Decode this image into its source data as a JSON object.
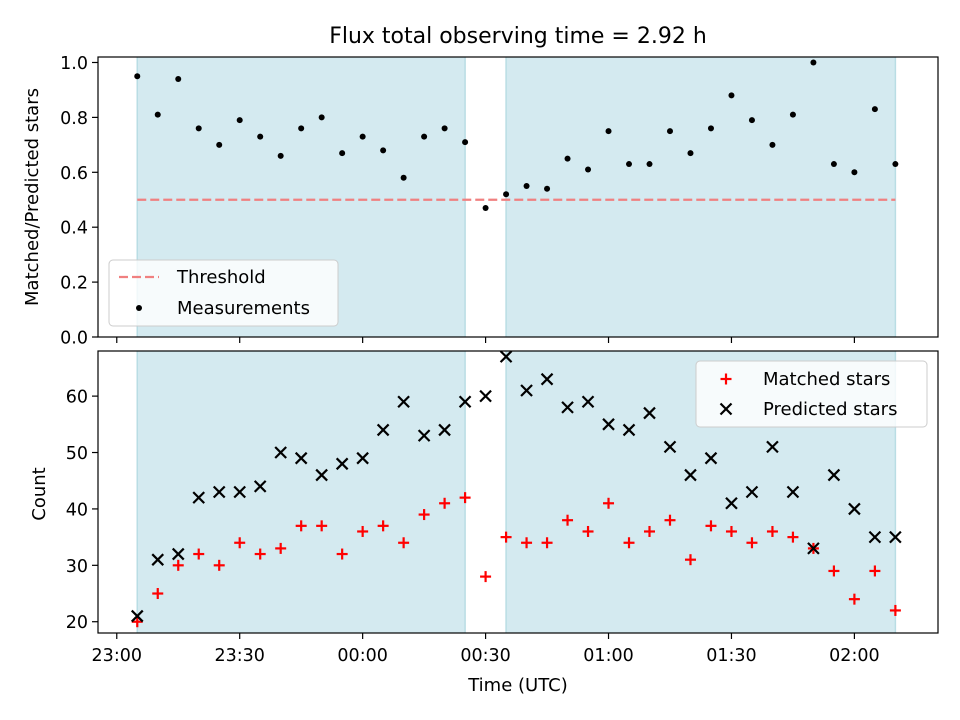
{
  "chart_data": [
    {
      "type": "scatter",
      "title": "Flux total observing time = 2.92 h",
      "xlabel": "",
      "ylabel": "Matched/Predicted stars",
      "ylim": [
        0,
        1.02
      ],
      "yticks": [
        "0.0",
        "0.2",
        "0.4",
        "0.6",
        "0.8",
        "1.0"
      ],
      "grid": false,
      "legend_position": "lower-left",
      "shaded_intervals": [
        [
          "23:05",
          "00:25"
        ],
        [
          "00:35",
          "02:10"
        ]
      ],
      "threshold": {
        "name": "Threshold",
        "value": 0.5,
        "x_range": [
          "23:05",
          "02:10"
        ],
        "color": "#f08080"
      },
      "series": [
        {
          "name": "Measurements",
          "color": "#000000",
          "x": [
            "23:05",
            "23:10",
            "23:15",
            "23:20",
            "23:25",
            "23:30",
            "23:35",
            "23:40",
            "23:45",
            "23:50",
            "23:55",
            "00:00",
            "00:05",
            "00:10",
            "00:15",
            "00:20",
            "00:25",
            "00:30",
            "00:35",
            "00:40",
            "00:45",
            "00:50",
            "00:55",
            "01:00",
            "01:05",
            "01:10",
            "01:15",
            "01:20",
            "01:25",
            "01:30",
            "01:35",
            "01:40",
            "01:45",
            "01:50",
            "01:55",
            "02:00",
            "02:05",
            "02:10"
          ],
          "values": [
            0.95,
            0.81,
            0.94,
            0.76,
            0.7,
            0.79,
            0.73,
            0.66,
            0.76,
            0.8,
            0.67,
            0.73,
            0.68,
            0.58,
            0.73,
            0.76,
            0.71,
            0.47,
            0.52,
            0.55,
            0.54,
            0.65,
            0.61,
            0.75,
            0.63,
            0.63,
            0.75,
            0.67,
            0.76,
            0.88,
            0.79,
            0.7,
            0.81,
            1.0,
            0.63,
            0.6,
            0.83,
            0.63
          ]
        }
      ]
    },
    {
      "type": "scatter",
      "title": "",
      "xlabel": "Time (UTC)",
      "ylabel": "Count",
      "ylim": [
        18,
        68
      ],
      "yticks": [
        "20",
        "30",
        "40",
        "50",
        "60"
      ],
      "xticks": [
        "23:00",
        "23:30",
        "00:00",
        "00:30",
        "01:00",
        "01:30",
        "02:00"
      ],
      "grid": false,
      "legend_position": "top-right",
      "shaded_intervals": [
        [
          "23:05",
          "00:25"
        ],
        [
          "00:35",
          "02:10"
        ]
      ],
      "series": [
        {
          "name": "Matched stars",
          "marker": "plus",
          "color": "#ff0000",
          "x": [
            "23:05",
            "23:10",
            "23:15",
            "23:20",
            "23:25",
            "23:30",
            "23:35",
            "23:40",
            "23:45",
            "23:50",
            "23:55",
            "00:00",
            "00:05",
            "00:10",
            "00:15",
            "00:20",
            "00:25",
            "00:30",
            "00:35",
            "00:40",
            "00:45",
            "00:50",
            "00:55",
            "01:00",
            "01:05",
            "01:10",
            "01:15",
            "01:20",
            "01:25",
            "01:30",
            "01:35",
            "01:40",
            "01:45",
            "01:50",
            "01:55",
            "02:00",
            "02:05",
            "02:10"
          ],
          "values": [
            20,
            25,
            30,
            32,
            30,
            34,
            32,
            33,
            37,
            37,
            32,
            36,
            37,
            34,
            39,
            41,
            42,
            28,
            35,
            34,
            34,
            38,
            36,
            41,
            34,
            36,
            38,
            31,
            37,
            36,
            34,
            36,
            35,
            33,
            29,
            24,
            29,
            22
          ]
        },
        {
          "name": "Predicted stars",
          "marker": "x",
          "color": "#000000",
          "x": [
            "23:05",
            "23:10",
            "23:15",
            "23:20",
            "23:25",
            "23:30",
            "23:35",
            "23:40",
            "23:45",
            "23:50",
            "23:55",
            "00:00",
            "00:05",
            "00:10",
            "00:15",
            "00:20",
            "00:25",
            "00:30",
            "00:35",
            "00:40",
            "00:45",
            "00:50",
            "00:55",
            "01:00",
            "01:05",
            "01:10",
            "01:15",
            "01:20",
            "01:25",
            "01:30",
            "01:35",
            "01:40",
            "01:45",
            "01:50",
            "01:55",
            "02:00",
            "02:05",
            "02:10"
          ],
          "values": [
            21,
            31,
            32,
            42,
            43,
            43,
            44,
            50,
            49,
            46,
            48,
            49,
            54,
            59,
            53,
            54,
            59,
            60,
            67,
            61,
            63,
            58,
            59,
            55,
            54,
            57,
            51,
            46,
            49,
            41,
            43,
            51,
            43,
            33,
            46,
            40,
            35,
            35
          ]
        }
      ]
    }
  ]
}
